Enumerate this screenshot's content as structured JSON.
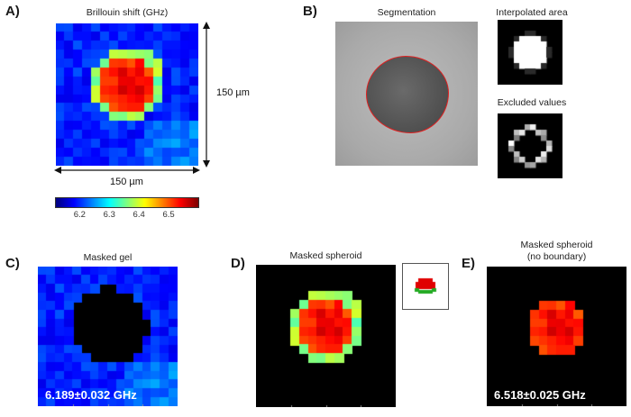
{
  "panels": {
    "A": {
      "label": "A)",
      "title": "Brillouin shift (GHz)",
      "height_dim": "150 µm",
      "width_dim": "150 µm",
      "colorbar_ticks": [
        "6.2",
        "6.3",
        "6.4",
        "6.5"
      ],
      "colorbar_tick_values": [
        6.2,
        6.3,
        6.4,
        6.5
      ],
      "colorbar_range": [
        6.12,
        6.6
      ]
    },
    "B": {
      "label": "B)",
      "segmentation_title": "Segmentation",
      "interpolated_title": "Interpolated area",
      "excluded_title": "Excluded values"
    },
    "C": {
      "label": "C)",
      "title": "Masked gel",
      "value_text": "6.189±0.032 GHz"
    },
    "D": {
      "label": "D)",
      "title": "Masked spheroid"
    },
    "E": {
      "label": "E)",
      "title": "Masked spheroid",
      "subtitle": "(no boundary)",
      "value_text": "6.518±0.025 GHz"
    }
  },
  "colors": {
    "mask": "#000000",
    "outline": "#e02020",
    "colormap": [
      "#00007f",
      "#0000ff",
      "#007fff",
      "#00ffff",
      "#7fff7f",
      "#ffff00",
      "#ff7f00",
      "#ff0000",
      "#7f0000"
    ]
  }
}
